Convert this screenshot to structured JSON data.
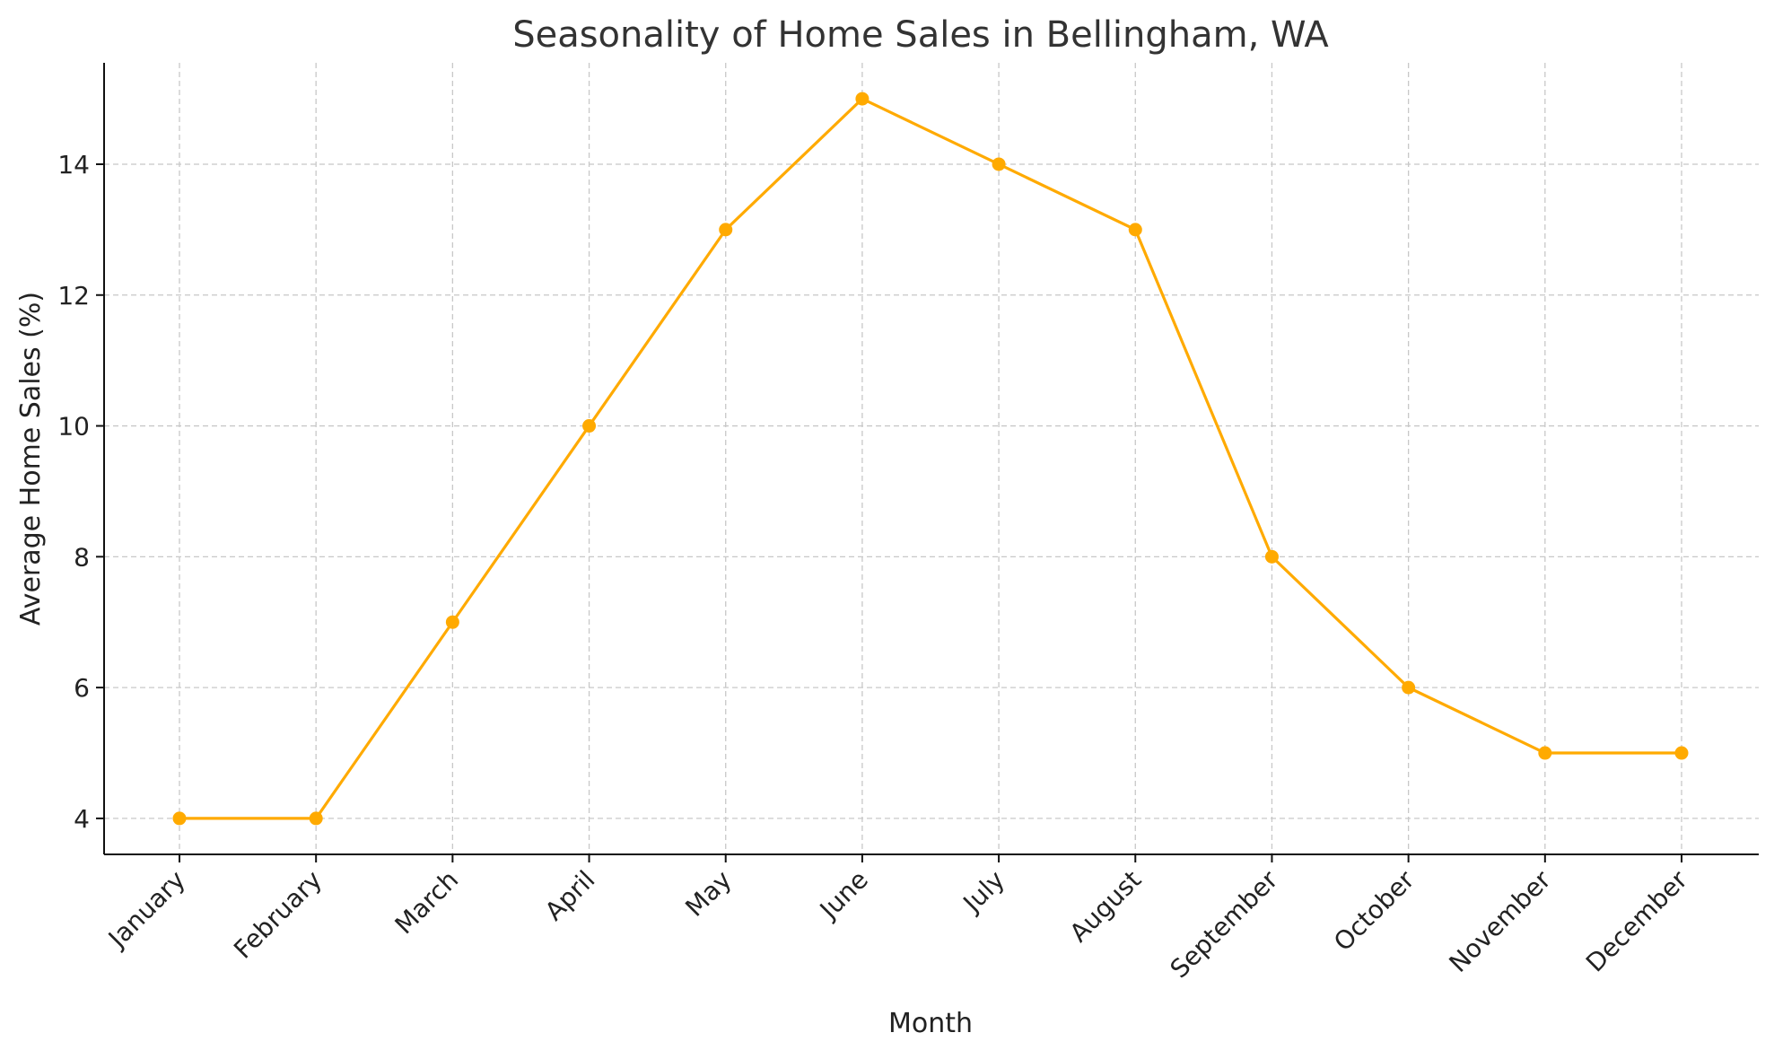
{
  "chart_data": {
    "type": "line",
    "title": "Seasonality of Home Sales in Bellingham, WA",
    "xlabel": "Month",
    "ylabel": "Average Home Sales (%)",
    "categories": [
      "January",
      "February",
      "March",
      "April",
      "May",
      "June",
      "July",
      "August",
      "September",
      "October",
      "November",
      "December"
    ],
    "series": [
      {
        "values": [
          4,
          4,
          7,
          10,
          13,
          15,
          14,
          13,
          8,
          6,
          5,
          5
        ]
      }
    ],
    "ylim": [
      3.45,
      15.55
    ],
    "yticks": [
      4,
      6,
      8,
      10,
      12,
      14
    ],
    "grid": true,
    "colors": {
      "line": "#FFAA00",
      "grid": "#C8C8C8",
      "axis": "#111111"
    }
  }
}
